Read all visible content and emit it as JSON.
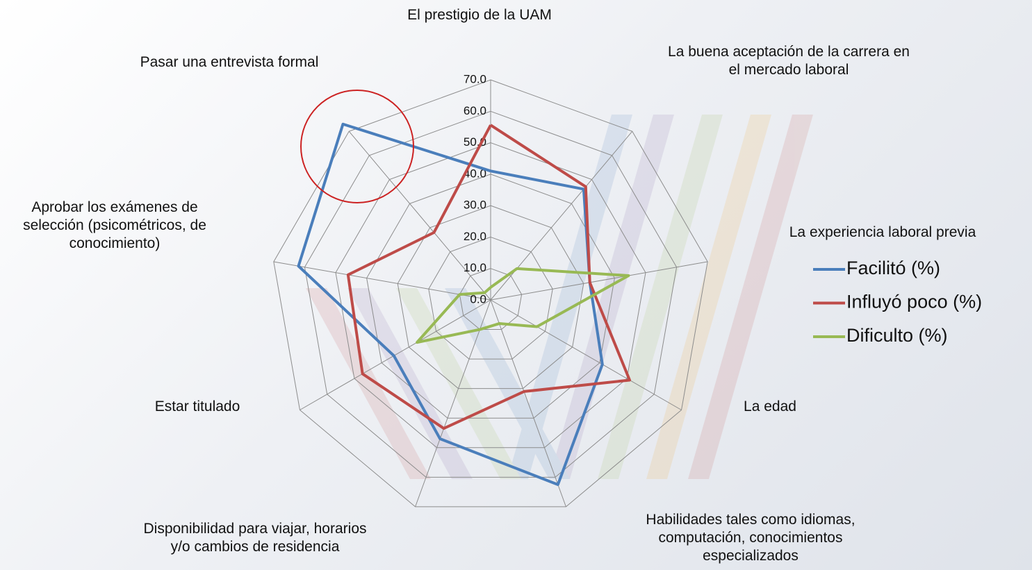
{
  "chart_data": {
    "type": "radar",
    "categories": [
      "El prestigio de la UAM",
      "La buena aceptación de la carrera en el mercado laboral",
      "La experiencia laboral previa",
      "La edad",
      "Habilidades tales como idiomas, computación, conocimientos especializados",
      "Disponibilidad para viajar, horarios y/o cambios de residencia",
      "Estar titulado",
      "Aprobar los exámenes de selección (psicométricos, de conocimiento)",
      "Pasar una entrevista formal"
    ],
    "series": [
      {
        "name": "Facilitó (%)",
        "color": "#4a7ebb",
        "values": [
          41,
          46,
          32,
          41,
          62.5,
          47,
          35.5,
          62,
          73
        ]
      },
      {
        "name": "Influyó poco (%)",
        "color": "#be4b48",
        "values": [
          55.6,
          47,
          32,
          51,
          31,
          43.5,
          47,
          46,
          28
        ]
      },
      {
        "name": "Dificulto (%)",
        "color": "#98b954",
        "values": [
          4,
          13,
          44.5,
          17,
          8,
          10,
          27,
          10,
          3
        ]
      }
    ],
    "rlim": [
      0,
      70
    ],
    "rticks": [
      {
        "value": 0,
        "label": "0.0"
      },
      {
        "value": 10,
        "label": "10.0"
      },
      {
        "value": 20,
        "label": "20.0"
      },
      {
        "value": 30,
        "label": "30.0"
      },
      {
        "value": 40,
        "label": "40.0"
      },
      {
        "value": 50,
        "label": "50.0"
      },
      {
        "value": 60,
        "label": "60.0"
      },
      {
        "value": 70,
        "label": "70.0"
      }
    ],
    "grid": true,
    "legend": "right"
  }
}
